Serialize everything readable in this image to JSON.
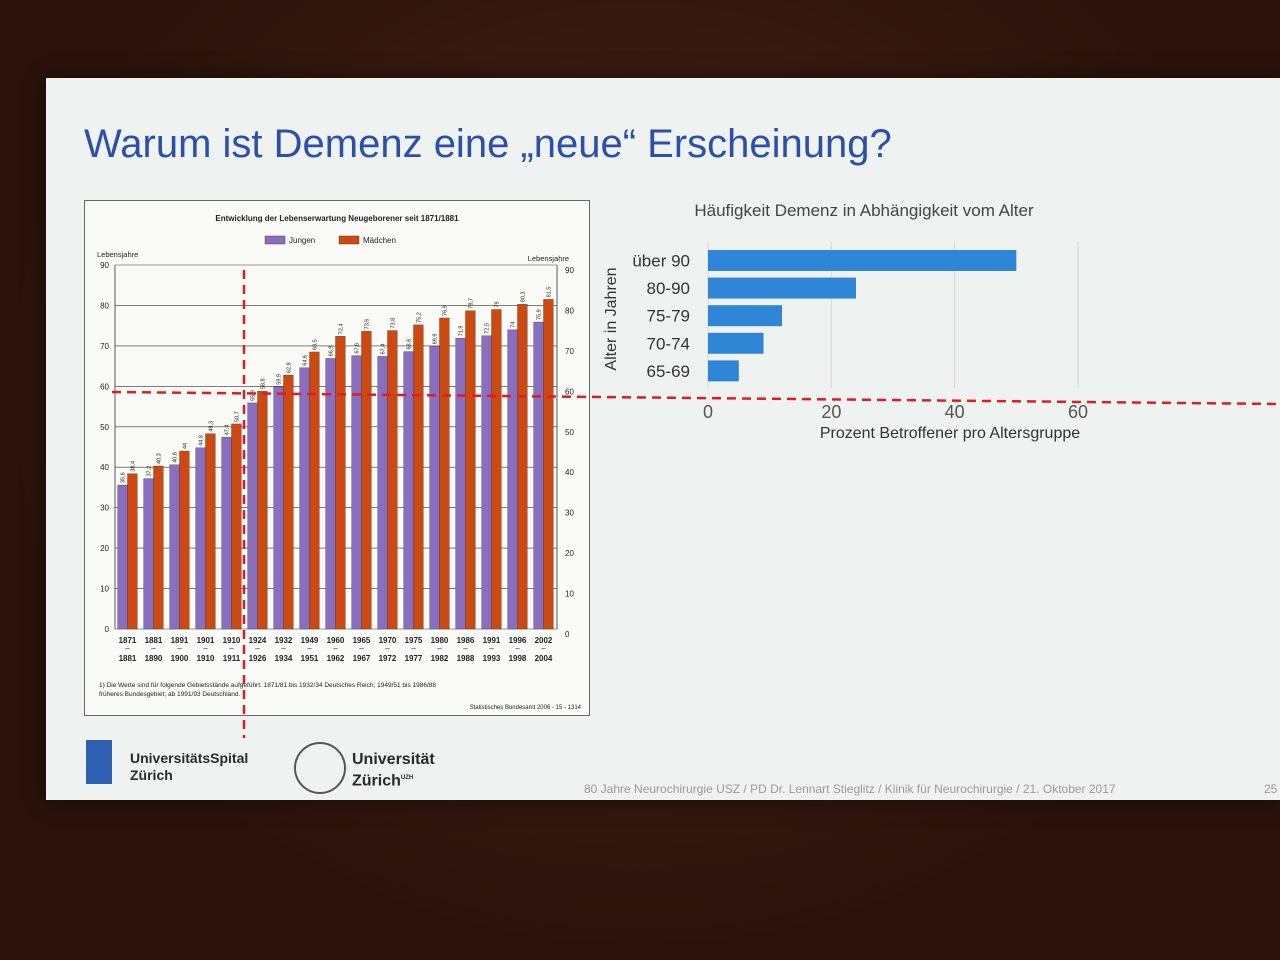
{
  "slide": {
    "title": "Warum ist Demenz eine „neue“ Erscheinung?",
    "footer": "80 Jahre Neurochirurgie USZ / PD Dr. Lennart Stieglitz / Klinik für Neurochirurgie  /  21. Oktober 2017",
    "slide_number": "25",
    "logos": {
      "usz_line1": "UniversitätsSpital",
      "usz_line2": "Zürich",
      "uzh_line1": "Universität",
      "uzh_line2": "Zürich",
      "uzh_mark": "UZH"
    }
  },
  "colors": {
    "jungen": "#8a6fc0",
    "maedchen": "#cc4a12",
    "demenz_bar": "#2f86d6",
    "title": "#2c4fa8",
    "dashed_line": "#dd1c28"
  },
  "chart_data": [
    {
      "type": "bar",
      "title": "Entwicklung der Lebenserwartung Neugeborener seit 1871/1881",
      "ylabel": "Lebensjahre",
      "ylabel_right": "Lebensjahre",
      "ylim": [
        0,
        90
      ],
      "yticks": [
        0,
        10,
        20,
        30,
        40,
        50,
        60,
        70,
        80,
        90
      ],
      "grid": true,
      "legend_position": "top-center",
      "categories_top": [
        "1871",
        "1881",
        "1891",
        "1901",
        "1910",
        "1924",
        "1932",
        "1949",
        "1960",
        "1965",
        "1970",
        "1975",
        "1980",
        "1986",
        "1991",
        "1996",
        "2002"
      ],
      "categories_bottom": [
        "1881",
        "1890",
        "1900",
        "1910",
        "1911",
        "1926",
        "1934",
        "1951",
        "1962",
        "1967",
        "1972",
        "1977",
        "1982",
        "1988",
        "1993",
        "1998",
        "2004"
      ],
      "series": [
        {
          "name": "Jungen",
          "values": [
            35.6,
            37.2,
            40.6,
            44.8,
            47.4,
            55.9,
            59.9,
            64.6,
            66.9,
            67.6,
            67.4,
            68.6,
            69.9,
            71.9,
            72.5,
            74.0,
            75.9
          ]
        },
        {
          "name": "Mädchen",
          "values": [
            38.4,
            40.3,
            44.0,
            48.3,
            50.7,
            58.8,
            62.8,
            68.5,
            72.4,
            73.6,
            73.8,
            75.2,
            76.9,
            78.7,
            79.0,
            80.3,
            81.5
          ]
        }
      ],
      "footnote_line1": "1) Die Werte sind für folgende Gebietsstände aufgeführt: 1871/81 bis 1932/34 Deutsches Reich; 1949/51 bis 1986/88",
      "footnote_line2": "früheres Bundesgebiet; ab 1991/93 Deutschland.",
      "source": "Statistisches Bundesamt 2006 - 15 - 1314"
    },
    {
      "type": "bar",
      "orientation": "horizontal",
      "title": "Häufigkeit Demenz in Abhängigkeit vom Alter",
      "xlabel": "Prozent Betroffener pro Altersgruppe",
      "ylabel": "Alter in Jahren",
      "categories": [
        "über 90",
        "80-90",
        "75-79",
        "70-74",
        "65-69"
      ],
      "values": [
        50,
        24,
        12,
        9,
        5
      ],
      "xlim": [
        0,
        60
      ],
      "xticks": [
        0,
        20,
        40,
        60
      ],
      "grid": true
    }
  ]
}
